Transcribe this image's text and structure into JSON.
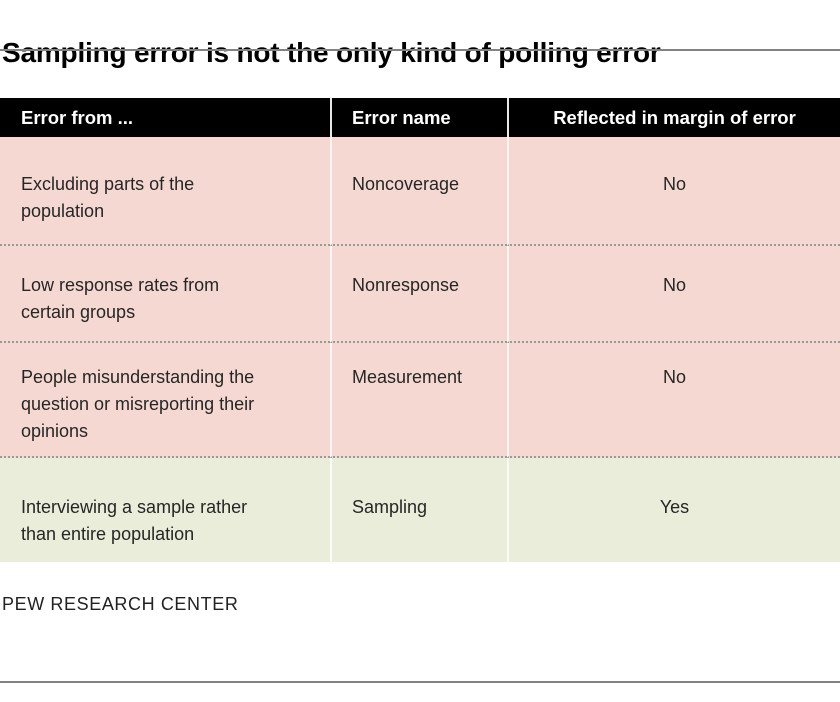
{
  "title": "Sampling error is not the only kind of polling error",
  "footer": {
    "source_label": "PEW RESEARCH CENTER"
  },
  "table": {
    "headers": [
      "Error from ...",
      "Error name",
      "Reflected in margin of error"
    ],
    "rows": [
      {
        "error_from": "Excluding parts of the population",
        "error_name": "Noncoverage",
        "reflected": "No"
      },
      {
        "error_from": "Low response rates from certain groups",
        "error_name": "Nonresponse",
        "reflected": "No"
      },
      {
        "error_from": "People misunderstanding the question or misreporting their opinions",
        "error_name": "Measurement",
        "reflected": "No"
      },
      {
        "error_from": "Interviewing a sample rather than entire population",
        "error_name": "Sampling",
        "reflected": "Yes"
      }
    ]
  },
  "colors": {
    "header_bg": "#000000",
    "header_text": "#ffffff",
    "row_pink": "#f6d8d3",
    "row_green": "#e9edda",
    "rule_gray": "#828282",
    "dotted_separator": "#999999",
    "body_text": "#262626"
  },
  "chart_data": {
    "type": "table",
    "title": "Sampling error is not the only kind of polling error",
    "columns": [
      "Error from ...",
      "Error name",
      "Reflected in margin of error"
    ],
    "rows": [
      [
        "Excluding parts of the population",
        "Noncoverage",
        "No"
      ],
      [
        "Low response rates from certain groups",
        "Nonresponse",
        "No"
      ],
      [
        "People misunderstanding the question or misreporting their opinions",
        "Measurement",
        "No"
      ],
      [
        "Interviewing a sample rather than entire population",
        "Sampling",
        "Yes"
      ]
    ],
    "highlighted_row": "Sampling",
    "layout_hints": {
      "highlight_color": "#e9edda",
      "default_row_color": "#f6d8d3",
      "header_style": "black background, white bold text",
      "row_separator": "dotted gray line"
    },
    "source": "PEW RESEARCH CENTER"
  }
}
